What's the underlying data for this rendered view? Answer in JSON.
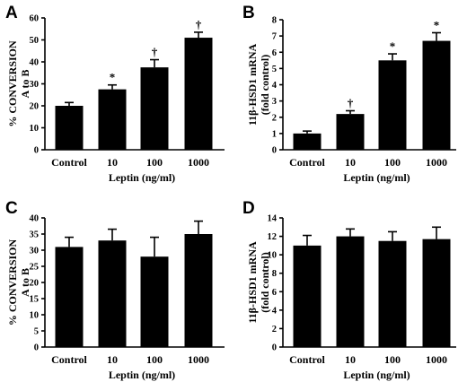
{
  "chart_data": [
    {
      "panel": "A",
      "type": "bar",
      "categories": [
        "Control",
        "10",
        "100",
        "1000"
      ],
      "values": [
        20,
        27.5,
        37.5,
        51
      ],
      "errors": [
        1.5,
        2,
        3.5,
        2.5
      ],
      "annotations": [
        "",
        "*",
        "†",
        "†"
      ],
      "xlabel": "Leptin (ng/ml)",
      "ylabel": [
        "% CONVERSION",
        "A to B"
      ],
      "ylim": [
        0,
        60
      ],
      "yticks": [
        0,
        10,
        20,
        30,
        40,
        50,
        60
      ]
    },
    {
      "panel": "B",
      "type": "bar",
      "categories": [
        "Control",
        "10",
        "100",
        "1000"
      ],
      "values": [
        1.0,
        2.2,
        5.5,
        6.7
      ],
      "errors": [
        0.15,
        0.2,
        0.4,
        0.5
      ],
      "annotations": [
        "",
        "†",
        "*",
        "*"
      ],
      "xlabel": "Leptin (ng/ml)",
      "ylabel": [
        "11β-HSD1 mRNA",
        "(fold control)"
      ],
      "ylim": [
        0,
        8
      ],
      "yticks": [
        0,
        1,
        2,
        3,
        4,
        5,
        6,
        7,
        8
      ]
    },
    {
      "panel": "C",
      "type": "bar",
      "categories": [
        "Control",
        "10",
        "100",
        "1000"
      ],
      "values": [
        31,
        33,
        28,
        35
      ],
      "errors": [
        3,
        3.5,
        6,
        4
      ],
      "annotations": [
        "",
        "",
        "",
        ""
      ],
      "xlabel": "Leptin (ng/ml)",
      "ylabel": [
        "% CONVERSION",
        "A to B"
      ],
      "ylim": [
        0,
        40
      ],
      "yticks": [
        0,
        5,
        10,
        15,
        20,
        25,
        30,
        35,
        40
      ]
    },
    {
      "panel": "D",
      "type": "bar",
      "categories": [
        "Control",
        "10",
        "100",
        "1000"
      ],
      "values": [
        11,
        12,
        11.5,
        11.7
      ],
      "errors": [
        1.1,
        0.8,
        1.0,
        1.3
      ],
      "annotations": [
        "",
        "",
        "",
        ""
      ],
      "xlabel": "Leptin (ng/ml)",
      "ylabel": [
        "11β-HSD1 mRNA",
        "(fold control)"
      ],
      "ylim": [
        0,
        14
      ],
      "yticks": [
        0,
        2,
        4,
        6,
        8,
        10,
        12,
        14
      ]
    }
  ]
}
